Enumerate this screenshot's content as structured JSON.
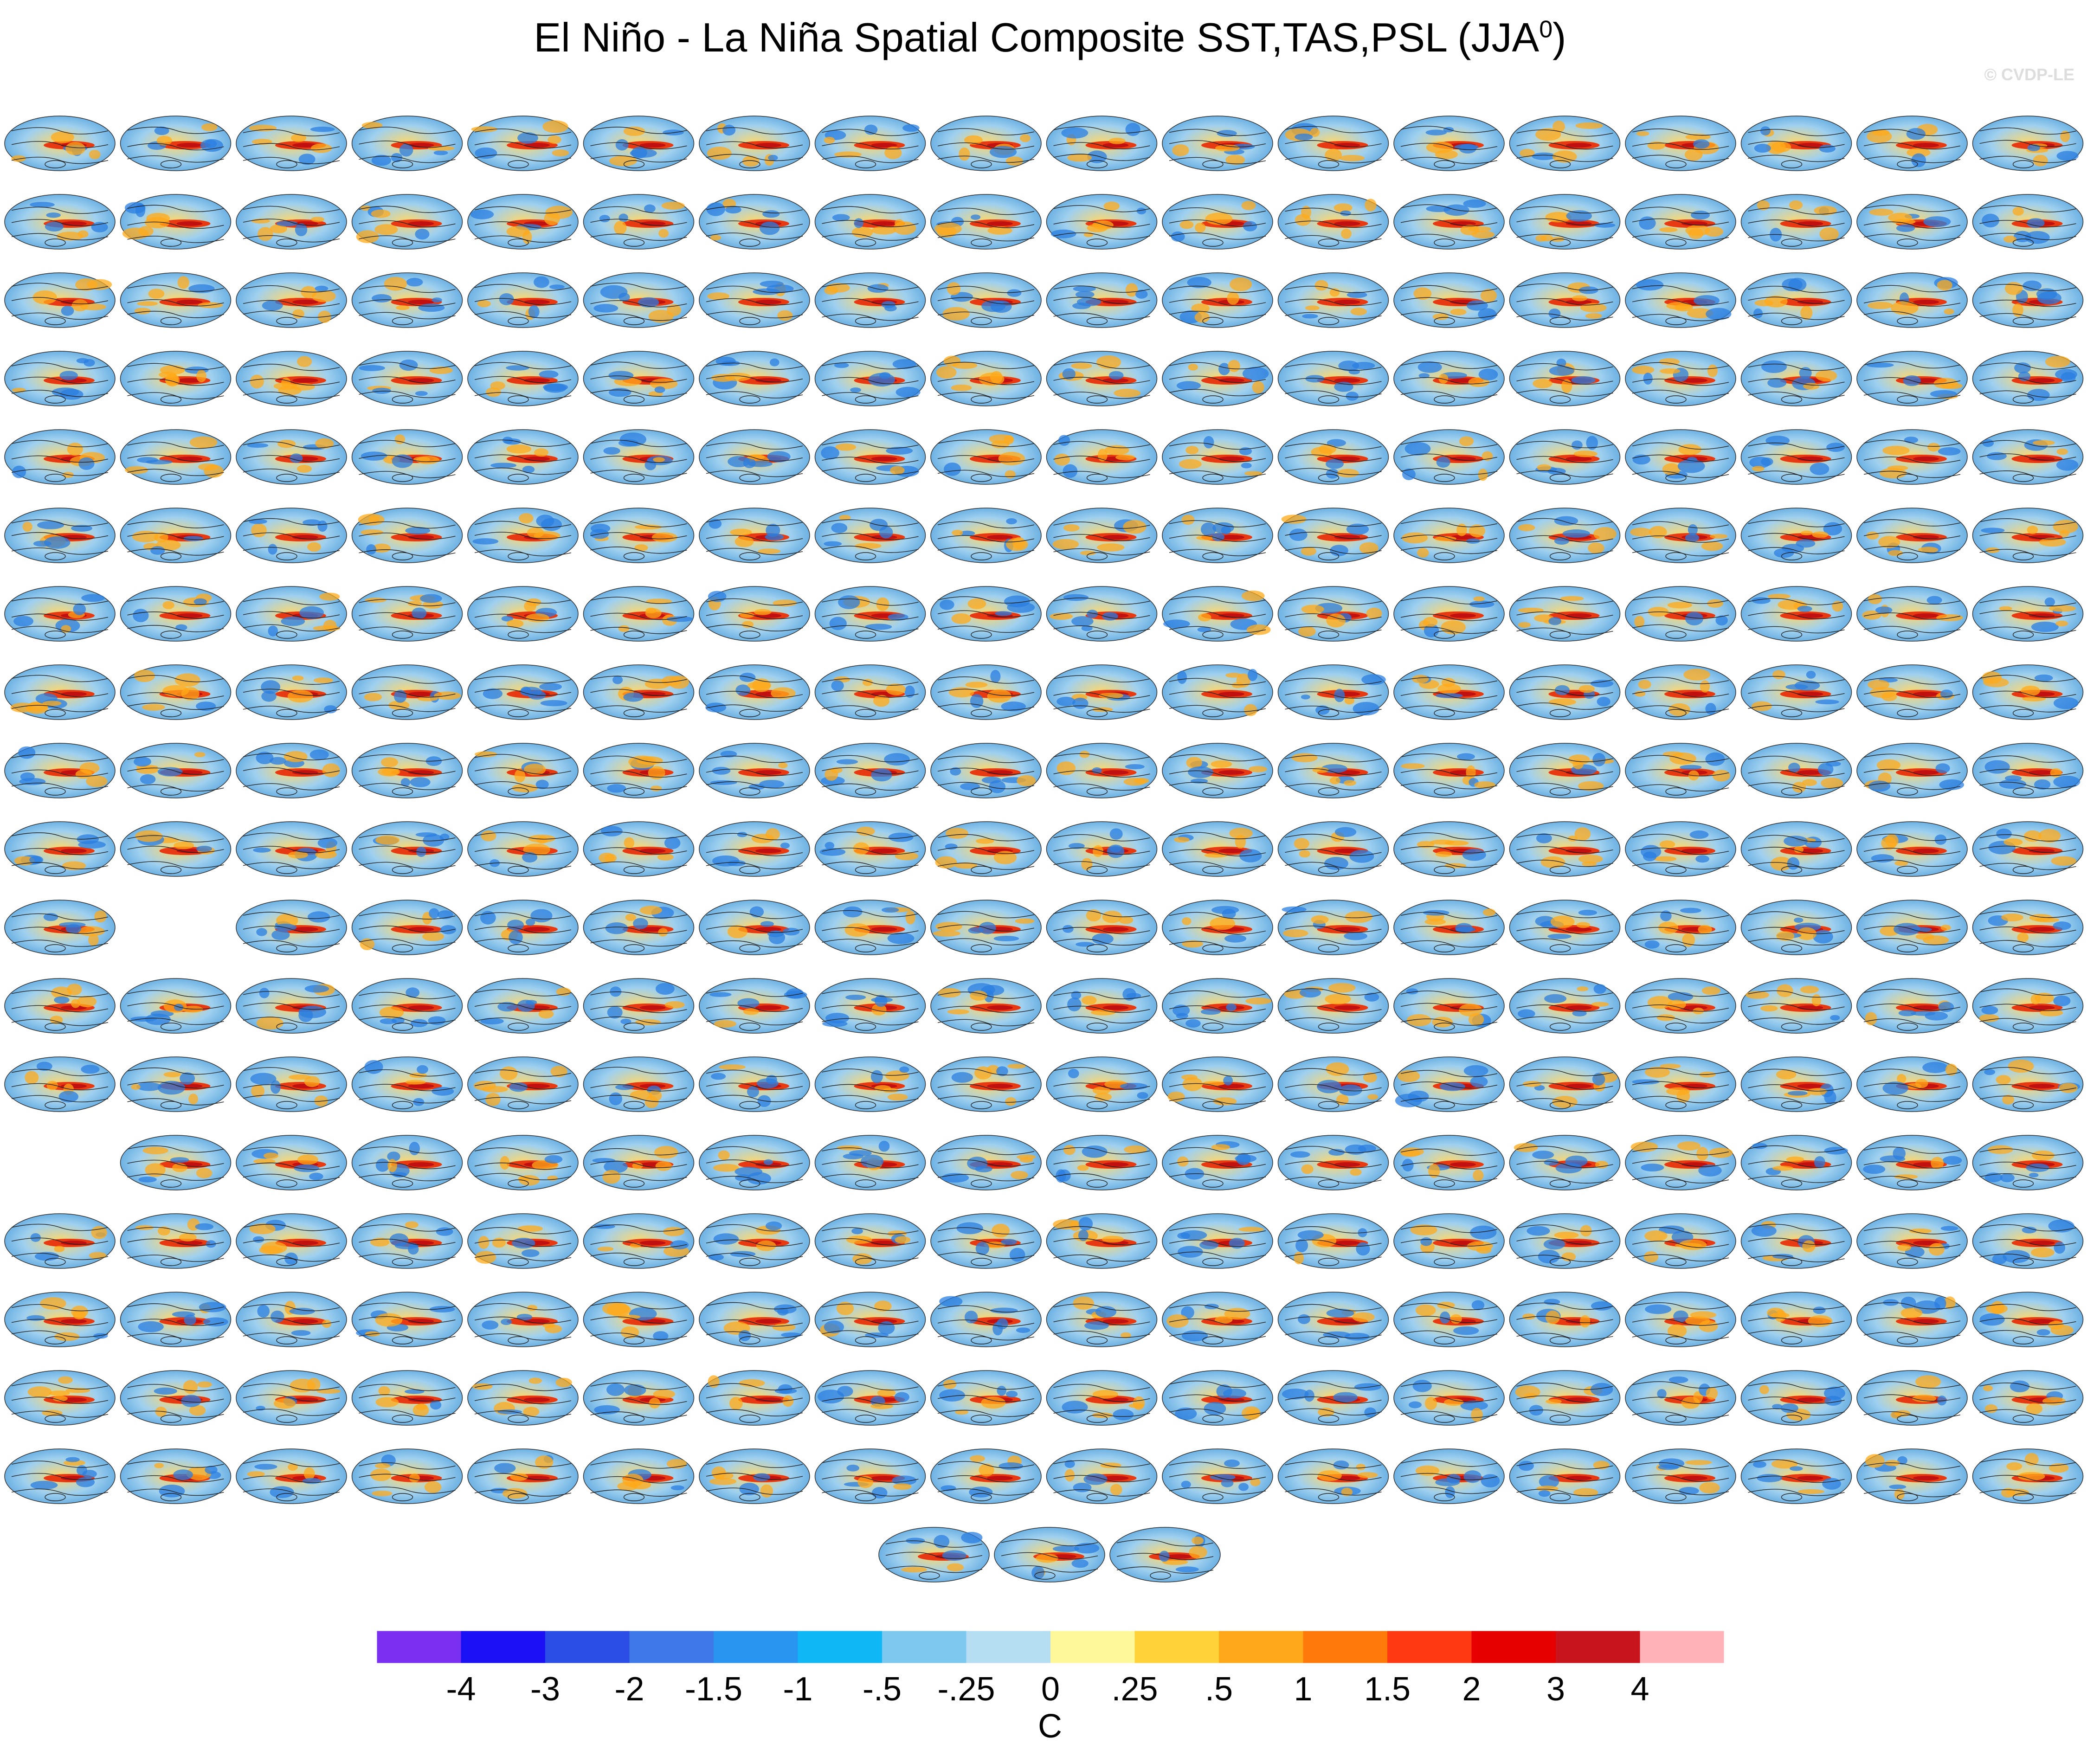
{
  "title": "El Niño - La Niña Spatial Composite SST,TAS,PSL (JJA",
  "title_sup": "0",
  "title_end": ")",
  "watermark": "© CVDP-LE",
  "colorbar": {
    "unit": "C",
    "tick_labels": [
      "-4",
      "-3",
      "-2",
      "-1.5",
      "-1",
      "-.5",
      "-.25",
      "0",
      ".25",
      ".5",
      "1",
      "1.5",
      "2",
      "3",
      "4"
    ],
    "colors": [
      "#7b2ff0",
      "#1a12f5",
      "#2b4fe6",
      "#3f78e8",
      "#2a95f0",
      "#0fb8f5",
      "#7cc8ef",
      "#b6def2",
      "#fef89a",
      "#ffd23a",
      "#ffa91a",
      "#ff7a0a",
      "#ff3a12",
      "#e60000",
      "#c8141c",
      "#ffb3b8"
    ]
  },
  "chart_data": {
    "type": "heatmap",
    "title": "El Niño - La Niña Spatial Composite SST,TAS,PSL (JJA0)",
    "description_of_grid": "small multiples of global composite maps",
    "columns": 18,
    "rows": [
      18,
      18,
      18,
      18,
      18,
      18,
      18,
      18,
      18,
      18,
      17,
      18,
      18,
      17,
      18,
      18,
      18,
      18,
      3
    ],
    "legend_units": "C",
    "legend_levels": [
      -4,
      -3,
      -2,
      -1.5,
      -1,
      -0.5,
      -0.25,
      0,
      0.25,
      0.5,
      1,
      1.5,
      2,
      3,
      4
    ]
  }
}
